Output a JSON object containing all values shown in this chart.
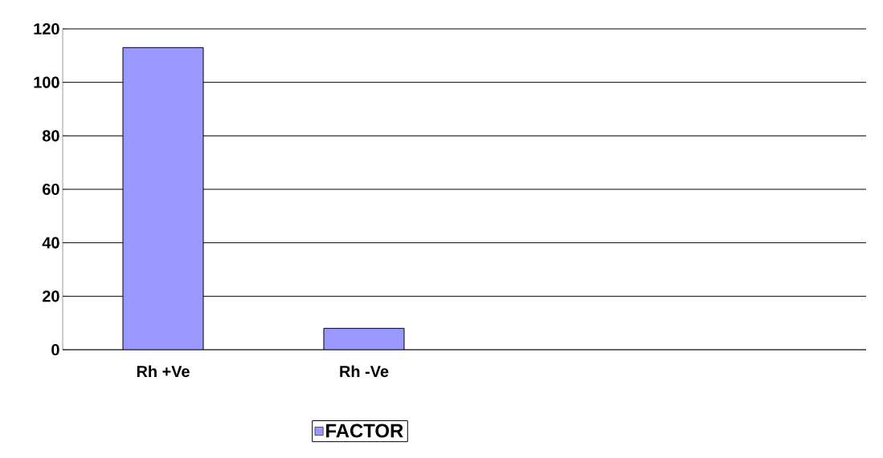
{
  "chart_data": {
    "type": "bar",
    "categories": [
      "Rh +Ve",
      "Rh -Ve",
      null,
      null
    ],
    "series": [
      {
        "name": "FACTOR",
        "color": "#9999ff",
        "values": [
          113,
          8,
          null,
          null
        ]
      }
    ],
    "ylim": [
      0,
      120
    ],
    "yticks": [
      0,
      20,
      40,
      60,
      80,
      100,
      120
    ],
    "grid": "y",
    "legend": "bottom"
  }
}
